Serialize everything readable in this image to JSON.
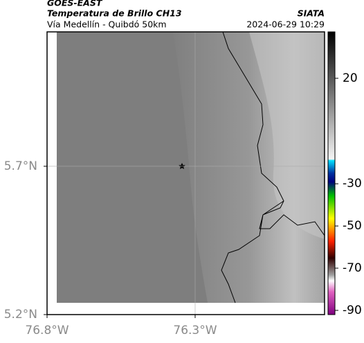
{
  "header": {
    "source": "GOES-EAST",
    "title": "Temperatura de Brillo CH13",
    "subtitle": "Vía Medellín - Quibdó 50km",
    "agency": "SIATA",
    "timestamp": "2024-06-29 10:29"
  },
  "map": {
    "xlim": [
      -76.8,
      -75.863
    ],
    "ylim": [
      5.2,
      6.153
    ],
    "xticks": [
      {
        "value": -76.8,
        "label": "76.8°W"
      },
      {
        "value": -76.3,
        "label": "76.3°W"
      }
    ],
    "yticks": [
      {
        "value": 5.2,
        "label": "5.2°N"
      },
      {
        "value": 5.7,
        "label": "5.7°N"
      }
    ]
  },
  "colorbar": {
    "lim": [
      -92,
      42
    ],
    "ticks": [
      20,
      -30,
      -50,
      -70,
      -90
    ]
  }
}
